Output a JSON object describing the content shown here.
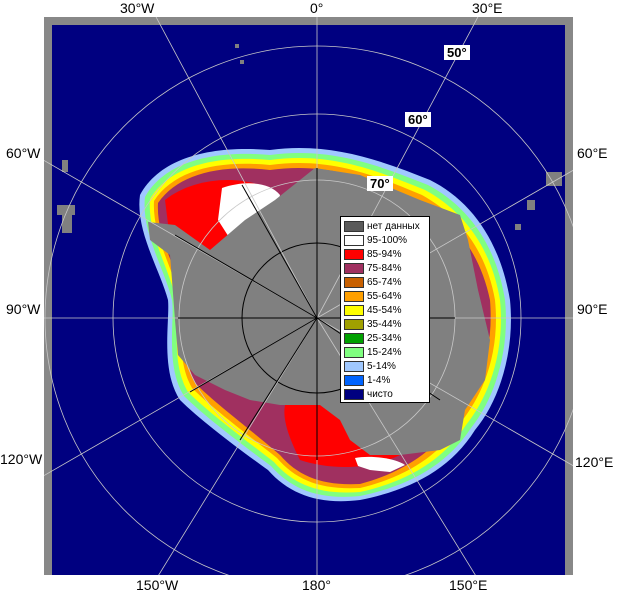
{
  "map": {
    "meridian_labels": {
      "top": [
        "30°W",
        "0°",
        "30°E"
      ],
      "left": [
        "60°W",
        "90°W",
        "120°W"
      ],
      "right": [
        "60°E",
        "90°E",
        "120°E"
      ],
      "bottom": [
        "150°W",
        "180°",
        "150°E"
      ]
    },
    "latitude_labels": [
      "50°",
      "60°",
      "70°"
    ],
    "colors": {
      "ocean_clear": "#000080",
      "no_data": "#808080",
      "grid": "#c8c8c8",
      "frame": "#888888"
    }
  },
  "legend": {
    "items": [
      {
        "label": "нет данных",
        "color": "#5a5a5a"
      },
      {
        "label": "95-100%",
        "color": "#ffffff"
      },
      {
        "label": "85-94%",
        "color": "#ff0000"
      },
      {
        "label": "75-84%",
        "color": "#a03060"
      },
      {
        "label": "65-74%",
        "color": "#c86000"
      },
      {
        "label": "55-64%",
        "color": "#ffa000"
      },
      {
        "label": "45-54%",
        "color": "#ffff00"
      },
      {
        "label": "35-44%",
        "color": "#a0a000"
      },
      {
        "label": "25-34%",
        "color": "#00a000"
      },
      {
        "label": "15-24%",
        "color": "#80ff80"
      },
      {
        "label": "5-14%",
        "color": "#a0c8ff"
      },
      {
        "label": "1-4%",
        "color": "#0064ff"
      },
      {
        "label": "чисто",
        "color": "#000080"
      }
    ]
  }
}
